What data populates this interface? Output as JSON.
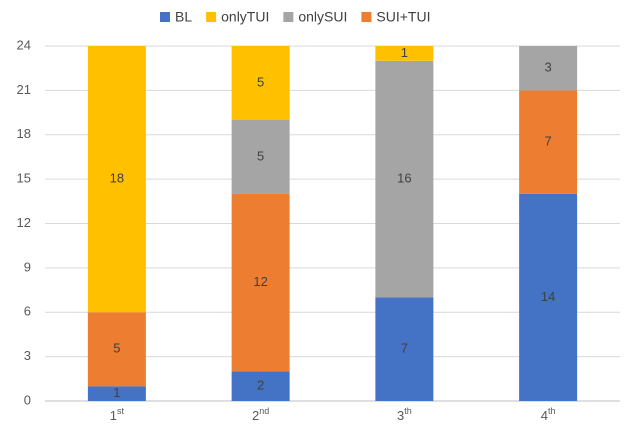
{
  "chart_data": {
    "type": "bar",
    "stacked": true,
    "categories": [
      "1st",
      "2nd",
      "3th",
      "4th"
    ],
    "series": [
      {
        "name": "BL",
        "color": "#4472c4",
        "values": [
          1,
          2,
          7,
          14
        ]
      },
      {
        "name": "onlyTUI",
        "color": "#ffc000",
        "values": [
          18,
          5,
          1,
          null
        ]
      },
      {
        "name": "onlySUI",
        "color": "#a5a5a5",
        "values": [
          null,
          5,
          16,
          3
        ]
      },
      {
        "name": "SUI+TUI",
        "color": "#ed7d31",
        "values": [
          5,
          12,
          null,
          7
        ]
      }
    ],
    "ylim": [
      0,
      24
    ],
    "yticks": [
      0,
      3,
      6,
      9,
      12,
      15,
      18,
      21,
      24
    ],
    "grid": true,
    "legend": "top"
  }
}
